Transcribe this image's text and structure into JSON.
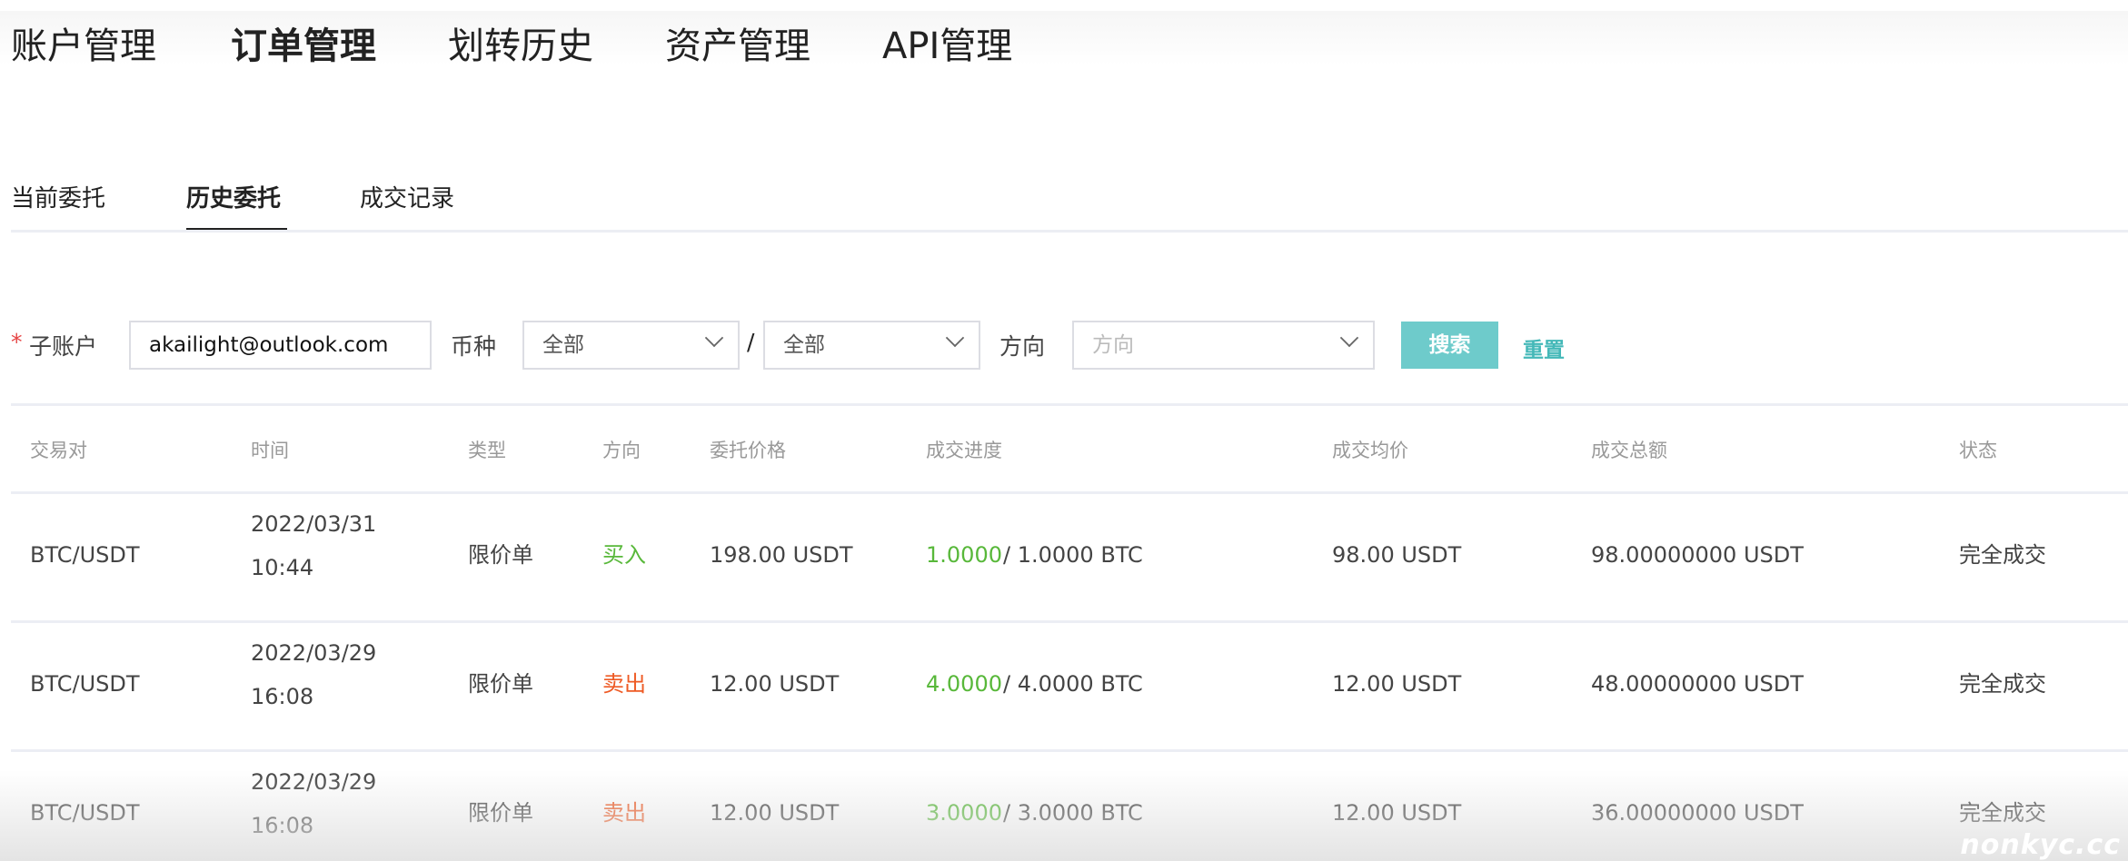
{
  "topnav": [
    "账户管理",
    "订单管理",
    "划转历史",
    "资产管理",
    "API管理"
  ],
  "topnav_active": 1,
  "subtabs": [
    "当前委托",
    "历史委托",
    "成交记录"
  ],
  "subtabs_active": 1,
  "filters": {
    "required_mark": "*",
    "subaccount_label": "子账户",
    "subaccount_value": "akailight@outlook.com",
    "currency_label": "币种",
    "currency_base": "全部",
    "separator": "/",
    "currency_quote": "全部",
    "direction_label": "方向",
    "direction_placeholder": "方向",
    "search_label": "搜索",
    "reset_label": "重置",
    "accent_color": "#6ecbcb"
  },
  "table": {
    "headers": [
      "交易对",
      "时间",
      "类型",
      "方向",
      "委托价格",
      "成交进度",
      "成交均价",
      "成交总额",
      "状态"
    ],
    "rows": [
      {
        "pair": "BTC/USDT",
        "date": "2022/03/31",
        "time": "10:44",
        "type": "限价单",
        "side": "买入",
        "side_kind": "buy",
        "price": "198.00 USDT",
        "filled": "1.0000",
        "total_qty": "/ 1.0000 BTC",
        "avg": "98.00 USDT",
        "amount": "98.00000000 USDT",
        "status": "完全成交"
      },
      {
        "pair": "BTC/USDT",
        "date": "2022/03/29",
        "time": "16:08",
        "type": "限价单",
        "side": "卖出",
        "side_kind": "sell",
        "price": "12.00 USDT",
        "filled": "4.0000",
        "total_qty": "/ 4.0000 BTC",
        "avg": "12.00 USDT",
        "amount": "48.00000000 USDT",
        "status": "完全成交"
      },
      {
        "pair": "BTC/USDT",
        "date": "2022/03/29",
        "time": "16:08",
        "type": "限价单",
        "side": "卖出",
        "side_kind": "sell",
        "price": "12.00 USDT",
        "filled": "3.0000",
        "total_qty": "/ 3.0000 BTC",
        "avg": "12.00 USDT",
        "amount": "36.00000000 USDT",
        "status": "完全成交"
      }
    ]
  },
  "watermark": "nonkyc.cc"
}
